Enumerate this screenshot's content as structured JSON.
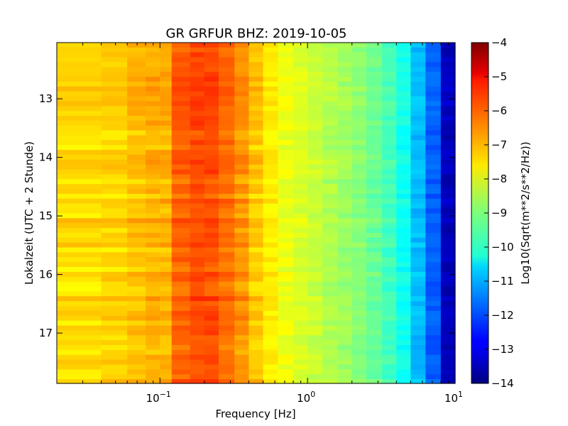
{
  "chart_data": {
    "type": "heatmap",
    "title": "GR GRFUR BHZ: 2019-10-05",
    "xlabel": "Frequency [Hz]",
    "ylabel": "Lokalzeit (UTC + 2 Stunde)",
    "x_scale": "log",
    "xlim": [
      0.02,
      10
    ],
    "x_ticks": [
      {
        "value": 0.1,
        "base": "10",
        "exp": "−1"
      },
      {
        "value": 1,
        "base": "10",
        "exp": "0"
      },
      {
        "value": 10,
        "base": "10",
        "exp": "1"
      }
    ],
    "ylim": [
      12.04,
      17.86
    ],
    "y_inverted": true,
    "y_ticks": [
      13,
      14,
      15,
      16,
      17
    ],
    "colorbar": {
      "label": "Log10(Sqrt(m**2/s**2/Hz))",
      "colormap": "jet",
      "range": [
        -14,
        -4
      ],
      "ticks": [
        -4,
        -5,
        -6,
        -7,
        -8,
        -9,
        -10,
        -11,
        -12,
        -13,
        -14
      ]
    },
    "x_bins_hz": [
      0.02,
      0.04,
      0.06,
      0.08,
      0.1,
      0.12,
      0.16,
      0.2,
      0.25,
      0.32,
      0.4,
      0.5,
      0.63,
      0.8,
      1.0,
      1.26,
      1.6,
      2.0,
      2.5,
      3.2,
      4.0,
      5.0,
      6.3,
      8.0,
      10.0
    ],
    "mean_spectrum_log10": [
      -7.4,
      -7.3,
      -7.1,
      -7.0,
      -7.0,
      -6.2,
      -6.0,
      -6.0,
      -6.3,
      -6.7,
      -7.2,
      -7.6,
      -7.9,
      -8.1,
      -8.3,
      -8.5,
      -8.7,
      -8.9,
      -9.2,
      -9.6,
      -10.1,
      -10.9,
      -11.8,
      -13.4
    ],
    "row_interval_h": 0.0833
  }
}
